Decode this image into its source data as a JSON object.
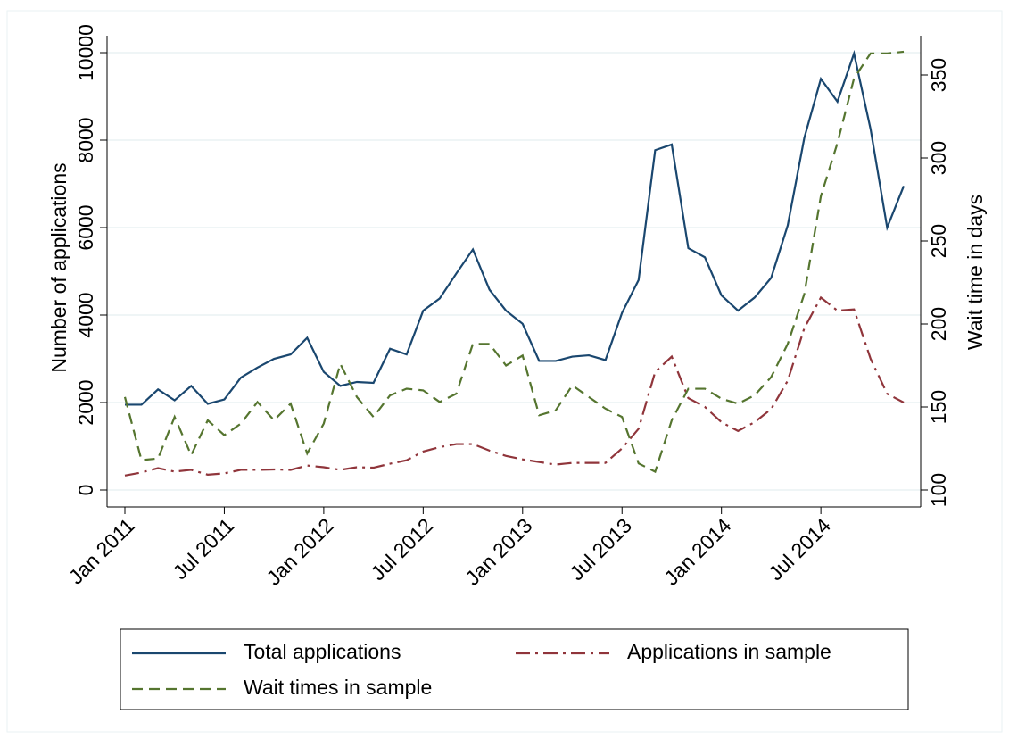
{
  "chart_data": {
    "type": "line",
    "categories": [
      "Jan 2011",
      null,
      null,
      null,
      null,
      null,
      "Jul 2011",
      null,
      null,
      null,
      null,
      null,
      "Jan 2012",
      null,
      null,
      null,
      null,
      null,
      "Jul 2012",
      null,
      null,
      null,
      null,
      null,
      "Jan 2013",
      null,
      null,
      null,
      null,
      null,
      "Jul 2013",
      null,
      null,
      null,
      null,
      null,
      "Jan 2014",
      null,
      null,
      null,
      null,
      null,
      "Jul 2014",
      null,
      null,
      null,
      null,
      null
    ],
    "series": [
      {
        "name": "Total applications",
        "color": "#1a476f",
        "line_style": "solid",
        "values": [
          1950,
          1950,
          2300,
          2050,
          2380,
          1970,
          2070,
          2570,
          2800,
          3000,
          3100,
          3480,
          2700,
          2380,
          2470,
          2450,
          3230,
          3100,
          4100,
          4380,
          4950,
          5500,
          4580,
          4100,
          3800,
          2950,
          2950,
          3050,
          3080,
          2970,
          4050,
          4800,
          7770,
          7900,
          5530,
          5320,
          4450,
          4100,
          4400,
          4850,
          6050,
          8050,
          9400,
          8880,
          9980,
          8250,
          6000,
          6950
        ]
      },
      {
        "name": "Applications in sample",
        "color": "#90353b",
        "line_style": "dashdot",
        "values": [
          330,
          400,
          500,
          420,
          460,
          350,
          380,
          460,
          460,
          470,
          460,
          560,
          520,
          460,
          520,
          510,
          600,
          680,
          880,
          980,
          1050,
          1050,
          900,
          780,
          700,
          640,
          580,
          620,
          620,
          620,
          950,
          1400,
          2700,
          3050,
          2100,
          1900,
          1550,
          1350,
          1550,
          1850,
          2500,
          3700,
          4400,
          4100,
          4130,
          3000,
          2200,
          2000
        ]
      },
      {
        "name": "Wait times in sample",
        "color": "#55752f",
        "line_style": "dash",
        "axis": "y2",
        "values": [
          156,
          118,
          119,
          144,
          121,
          142,
          133,
          140,
          153,
          142,
          152,
          122,
          140,
          176,
          156,
          144,
          157,
          161,
          160,
          153,
          158,
          188,
          188,
          175,
          181,
          145,
          148,
          163,
          156,
          149,
          144,
          116,
          111,
          142,
          161,
          161,
          155,
          152,
          157,
          168,
          188,
          218,
          277,
          309,
          348,
          363,
          363,
          364
        ]
      }
    ],
    "y_label": "Number of applications",
    "y2_label": "Wait time in days",
    "ylim": [
      0,
      10000
    ],
    "yticks": [
      0,
      2000,
      4000,
      6000,
      8000,
      10000
    ],
    "y2lim": [
      100,
      364
    ],
    "y2ticks": [
      100,
      150,
      200,
      250,
      300,
      350
    ],
    "grid": true
  }
}
